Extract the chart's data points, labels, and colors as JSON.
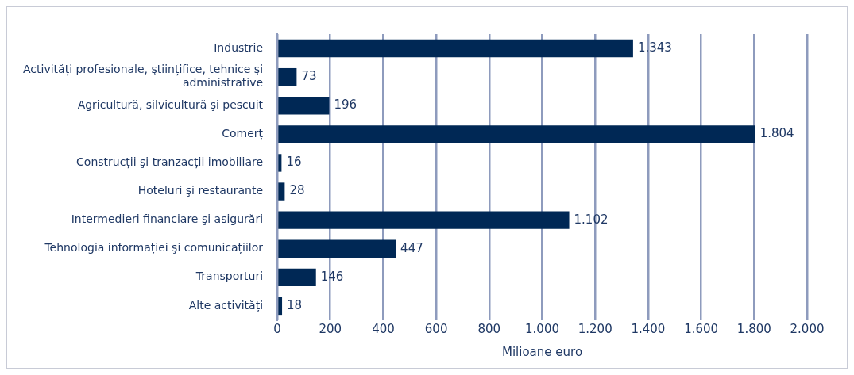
{
  "chart_data": {
    "type": "bar",
    "orientation": "horizontal",
    "xlabel": "Milioane euro",
    "categories": [
      "Industrie",
      "Activități profesionale, ştiințifice, tehnice şi administrative",
      "Agricultură, silvicultură şi pescuit",
      "Comerț",
      "Construcții şi tranzacții imobiliare",
      "Hoteluri şi restaurante",
      "Intermedieri financiare şi asigurări",
      "Tehnologia informației şi comunicațiilor",
      "Transporturi",
      "Alte activități"
    ],
    "values": [
      1343,
      73,
      196,
      1804,
      16,
      28,
      1102,
      447,
      146,
      18
    ],
    "value_labels": [
      "1.343",
      "73",
      "196",
      "1.804",
      "16",
      "28",
      "1.102",
      "447",
      "146",
      "18"
    ],
    "color": "#002855",
    "xlim": [
      0,
      2000
    ],
    "xticks": [
      0,
      200,
      400,
      600,
      800,
      {
        "value": 1000,
        "label": "1.000"
      },
      {
        "value": 1200,
        "label": "1.200"
      },
      {
        "value": 1400,
        "label": "1.400"
      },
      {
        "value": 1600,
        "label": "1.600"
      },
      {
        "value": 1800,
        "label": "1.800"
      },
      {
        "value": 2000,
        "label": "2.000"
      }
    ],
    "grid": "x",
    "legend": false
  }
}
